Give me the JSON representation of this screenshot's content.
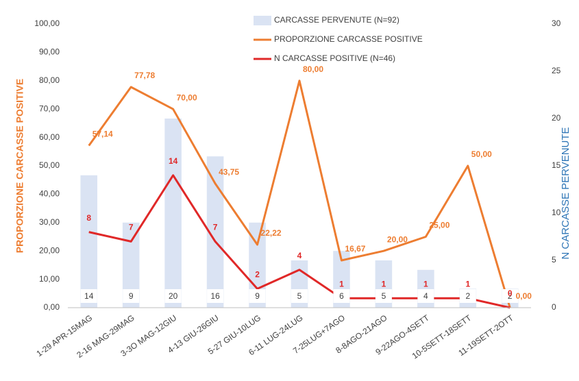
{
  "chart_data": {
    "type": "bar",
    "categories": [
      "1-29 APR-15MAG",
      "2-16 MAG-29MAG",
      "3-3O MAG-12GIU",
      "4-13 GIU-26GIU",
      "5-27 GIU-10LUG",
      "6-11 LUG-24LUG",
      "7-25LUG+7AGO",
      "8-8AGO-21AGO",
      "9-22AGO-4SETT",
      "10-5SETT-18SETT",
      "11-19SETT-2OTT"
    ],
    "series": [
      {
        "name": "CARCASSE PERVENUTE (N=92)",
        "type": "bar",
        "axis": "y2",
        "color": "#dae3f3",
        "values": [
          14,
          9,
          20,
          16,
          9,
          5,
          6,
          5,
          4,
          2,
          2
        ]
      },
      {
        "name": "PROPORZIONE CARCASSE POSITIVE",
        "type": "line",
        "color": "#ed7d31",
        "values": [
          57.14,
          77.78,
          70.0,
          43.75,
          22.22,
          80.0,
          16.67,
          20.0,
          25.0,
          50.0,
          0.0
        ],
        "value_labels": [
          "57,14",
          "77,78",
          "70,00",
          "43,75",
          "22,22",
          "80,00",
          "16,67",
          "20,00",
          "25,00",
          "50,00",
          "0,00"
        ]
      },
      {
        "name": "N CARCASSE POSITIVE (N=46)",
        "type": "line",
        "axis": "y2",
        "color": "#e02828",
        "values": [
          8,
          7,
          14,
          7,
          2,
          4,
          1,
          1,
          1,
          1,
          0
        ]
      }
    ],
    "y_label": "PROPORZIONE CARCASSE POSITIVE",
    "y2_label": "N CARCASSE PERVENUTE",
    "ylim": [
      0,
      100
    ],
    "yticks": [
      {
        "value": 0,
        "label": "0,00"
      },
      {
        "value": 10,
        "label": "10,00"
      },
      {
        "value": 20,
        "label": "20,00"
      },
      {
        "value": 30,
        "label": "30,00"
      },
      {
        "value": 40,
        "label": "40,00"
      },
      {
        "value": 50,
        "label": "50,00"
      },
      {
        "value": 60,
        "label": "60,00"
      },
      {
        "value": 70,
        "label": "70,00"
      },
      {
        "value": 80,
        "label": "80,00"
      },
      {
        "value": 90,
        "label": "90,00"
      },
      {
        "value": 100,
        "label": "100,00"
      }
    ],
    "y2lim": [
      0,
      30
    ],
    "y2ticks": [
      0,
      5,
      10,
      15,
      20,
      25,
      30
    ],
    "legend": "top",
    "grid": false
  }
}
